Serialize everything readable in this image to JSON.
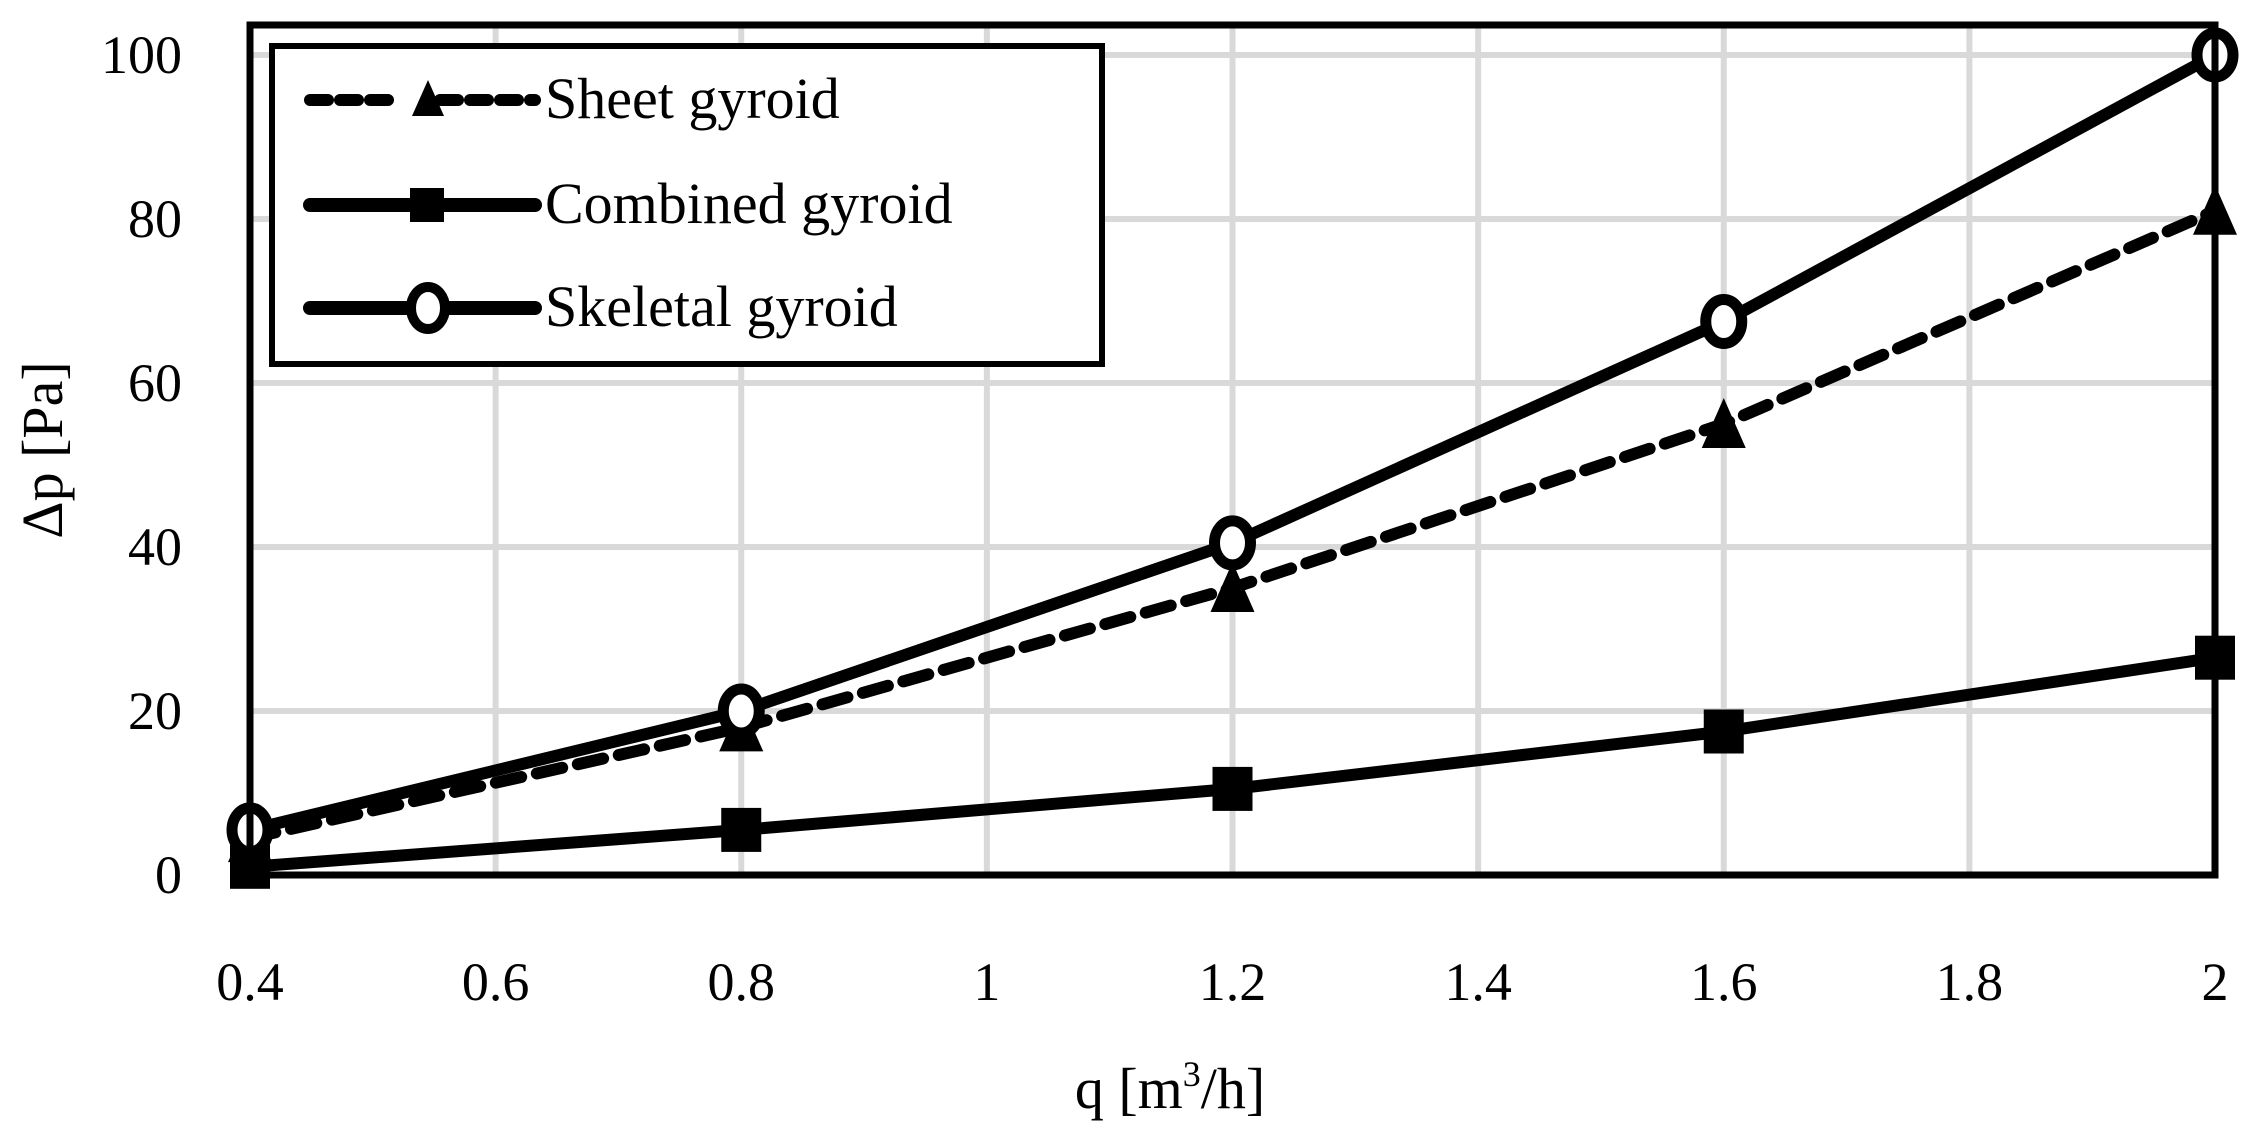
{
  "chart_data": {
    "type": "line",
    "title": "",
    "xlabel": "q [m³/h]",
    "xlabel_parts": {
      "main": "q [m",
      "sup": "3",
      "tail": "/h]"
    },
    "ylabel": "Δp [Pa]",
    "xlim": [
      0.4,
      2.0
    ],
    "ylim": [
      0,
      100
    ],
    "x_ticks": [
      "0.4",
      "0.6",
      "0.8",
      "1",
      "1.2",
      "1.4",
      "1.6",
      "1.8",
      "2"
    ],
    "y_ticks": [
      "0",
      "20",
      "40",
      "60",
      "80",
      "100"
    ],
    "grid": true,
    "legend_position": "upper-left",
    "x": [
      0.4,
      0.8,
      1.2,
      1.6,
      2.0
    ],
    "series": [
      {
        "name": "Sheet gyroid",
        "marker": "triangle",
        "line": "dashed",
        "values": [
          4.5,
          18,
          35,
          55,
          81
        ]
      },
      {
        "name": "Combined gyroid",
        "marker": "square",
        "line": "solid",
        "values": [
          1,
          5.5,
          10.5,
          17.5,
          26.5
        ]
      },
      {
        "name": "Skeletal gyroid",
        "marker": "circle-open",
        "line": "solid",
        "values": [
          5.5,
          20,
          40.5,
          67.5,
          100
        ]
      }
    ],
    "colors": {
      "line": "#000000",
      "grid": "#d9d9d9",
      "frame": "#000000"
    }
  }
}
